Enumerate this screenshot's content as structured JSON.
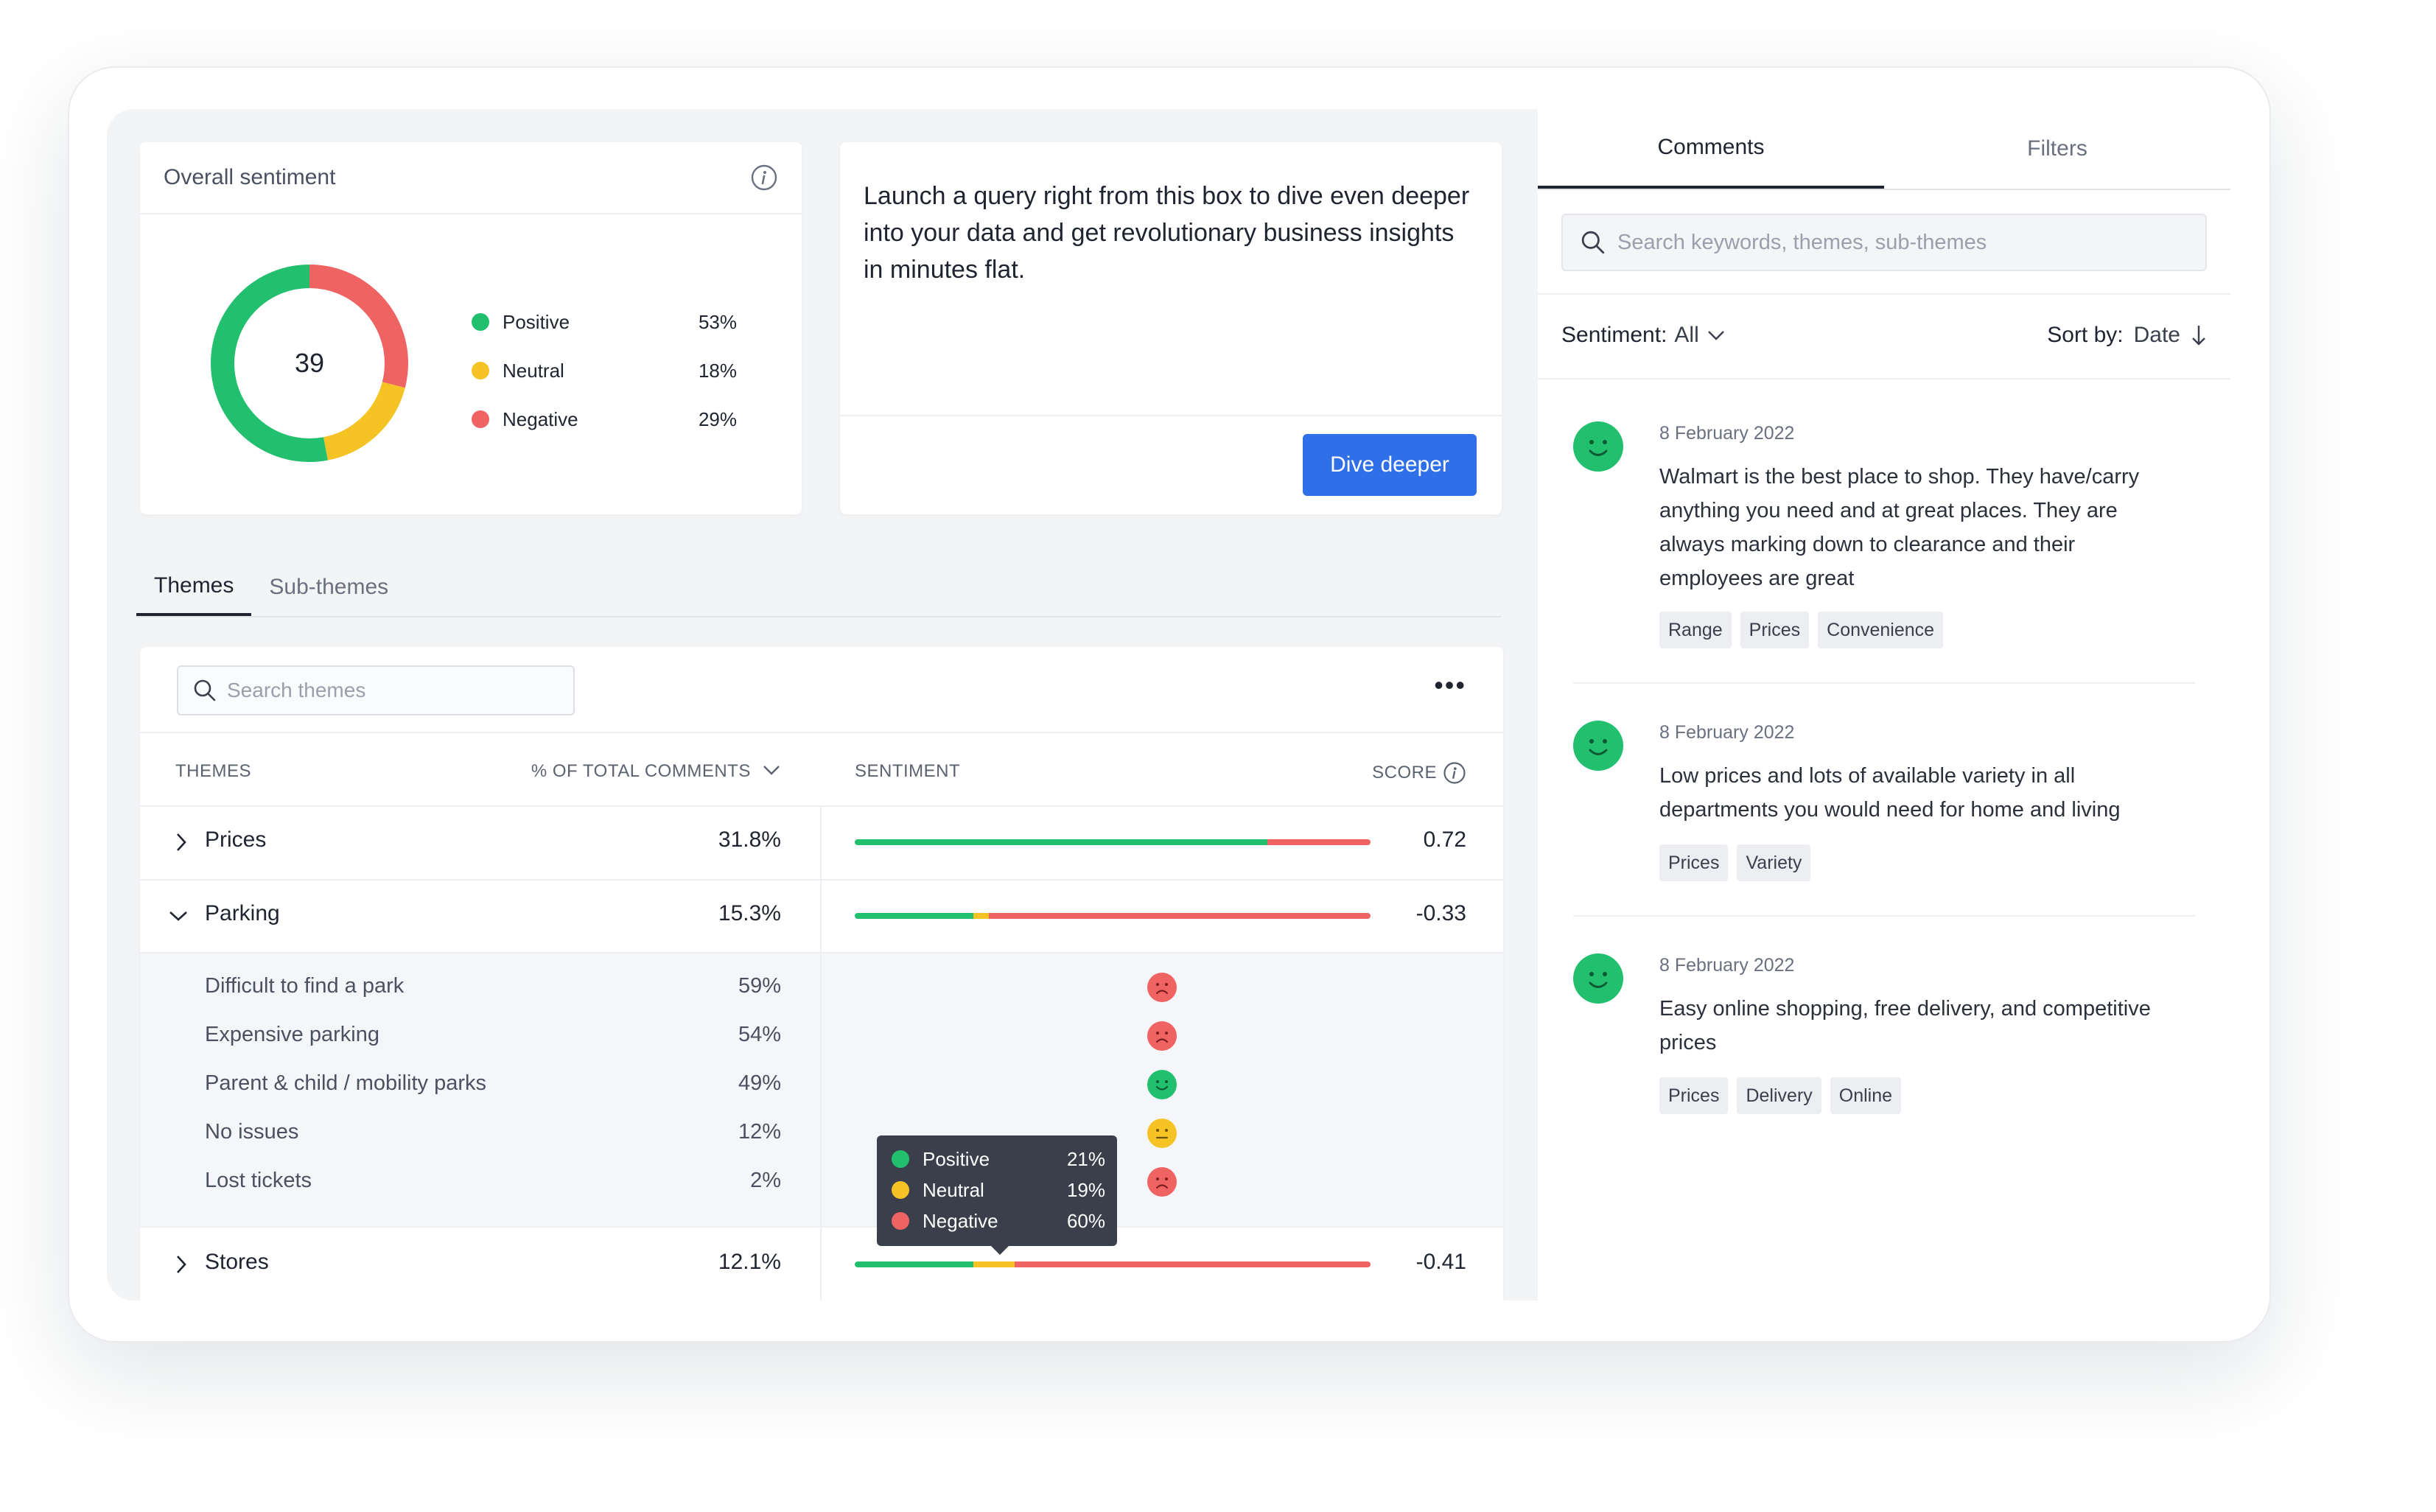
{
  "overall_sentiment": {
    "title": "Overall sentiment",
    "total": "39",
    "legend": [
      {
        "label": "Positive",
        "pct": "53%",
        "value": 53,
        "color": "#22c06e"
      },
      {
        "label": "Neutral",
        "pct": "18%",
        "value": 18,
        "color": "#f5c324"
      },
      {
        "label": "Negative",
        "pct": "29%",
        "value": 29,
        "color": "#f06363"
      }
    ]
  },
  "query": {
    "text": "Launch a query right from this box to dive even deeper into your data and get revolutionary business insights in minutes flat.",
    "button": "Dive deeper"
  },
  "theme_tabs": [
    "Themes",
    "Sub-themes"
  ],
  "themes_table": {
    "search_placeholder": "Search themes",
    "more_label": "•••",
    "columns": {
      "themes": "THEMES",
      "pct": "% OF TOTAL COMMENTS",
      "sentiment": "SENTIMENT",
      "score": "SCORE"
    },
    "rows": [
      {
        "name": "Prices",
        "pct": "31.8%",
        "score": "0.72",
        "sentiment": {
          "positive": 80,
          "neutral": 0,
          "negative": 20
        }
      },
      {
        "name": "Parking",
        "pct": "15.3%",
        "score": "-0.33",
        "sentiment": {
          "positive": 23,
          "neutral": 3,
          "negative": 74
        }
      },
      {
        "name": "Stores",
        "pct": "12.1%",
        "score": "-0.41",
        "sentiment": {
          "positive": 23,
          "neutral": 8,
          "negative": 69
        }
      }
    ],
    "sub_rows": [
      {
        "name": "Difficult to find a park",
        "pct": "59%",
        "sentiment": "negative"
      },
      {
        "name": "Expensive parking",
        "pct": "54%",
        "sentiment": "negative"
      },
      {
        "name": "Parent & child / mobility parks",
        "pct": "49%",
        "sentiment": "positive"
      },
      {
        "name": "No issues",
        "pct": "12%",
        "sentiment": "neutral"
      },
      {
        "name": "Lost tickets",
        "pct": "2%",
        "sentiment": "negative"
      }
    ]
  },
  "tooltip": [
    {
      "label": "Positive",
      "pct": "21%",
      "color": "#22c06e"
    },
    {
      "label": "Neutral",
      "pct": "19%",
      "color": "#f5c324"
    },
    {
      "label": "Negative",
      "pct": "60%",
      "color": "#f06363"
    }
  ],
  "right_panel": {
    "tabs": [
      "Comments",
      "Filters"
    ],
    "search_placeholder": "Search keywords, themes, sub-themes",
    "sentiment_label": "Sentiment:",
    "sentiment_value": "All",
    "sort_label": "Sort by:",
    "sort_value": "Date",
    "comments": [
      {
        "date": "8 February 2022",
        "text": "Walmart is the best place to shop. They have/carry anything you need and at great places. They are always marking down to clearance and their employees are great",
        "tags": [
          "Range",
          "Prices",
          "Convenience"
        ]
      },
      {
        "date": "8 February 2022",
        "text": "Low prices and lots of available variety in all departments you would need for home and living",
        "tags": [
          "Prices",
          "Variety"
        ]
      },
      {
        "date": "8 February 2022",
        "text": "Easy online shopping, free delivery, and competitive prices",
        "tags": [
          "Prices",
          "Delivery",
          "Online"
        ]
      }
    ]
  },
  "colors": {
    "positive": "#22c06e",
    "neutral": "#f5c324",
    "negative": "#f06363",
    "accent": "#2f6fe8"
  }
}
